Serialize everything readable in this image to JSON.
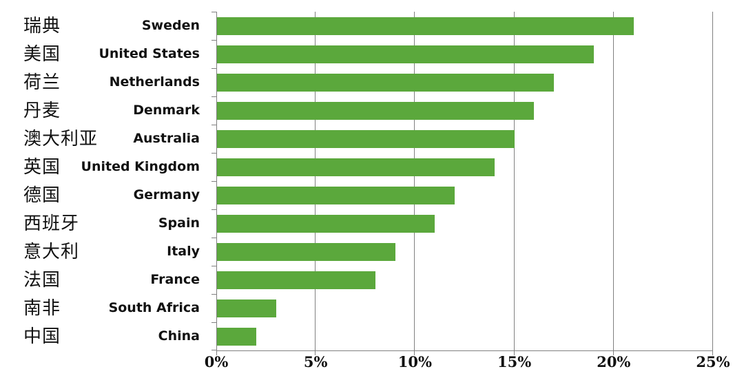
{
  "chart_data": {
    "type": "bar",
    "orientation": "horizontal",
    "title": "",
    "xlabel": "",
    "ylabel": "",
    "categories_zh": [
      "瑞典",
      "美国",
      "荷兰",
      "丹麦",
      "澳大利亚",
      "英国",
      "德国",
      "西班牙",
      "意大利",
      "法国",
      "南非",
      "中国"
    ],
    "categories_en": [
      "Sweden",
      "United States",
      "Netherlands",
      "Denmark",
      "Australia",
      "United Kingdom",
      "Germany",
      "Spain",
      "Italy",
      "France",
      "South Africa",
      "China"
    ],
    "values": [
      21,
      19,
      17,
      16,
      15,
      14,
      12,
      11,
      9,
      8,
      3,
      2
    ],
    "value_unit": "%",
    "xlim": [
      0,
      25
    ],
    "x_tick_values": [
      0,
      5,
      10,
      15,
      20,
      25
    ],
    "x_tick_labels": [
      "0%",
      "5%",
      "10%",
      "15%",
      "20%",
      "25%"
    ],
    "grid": true,
    "legend_position": "none",
    "colors": {
      "bar": "#5BA83C",
      "axis": "#808080",
      "text": "#111111",
      "background": "#FFFFFF"
    }
  }
}
